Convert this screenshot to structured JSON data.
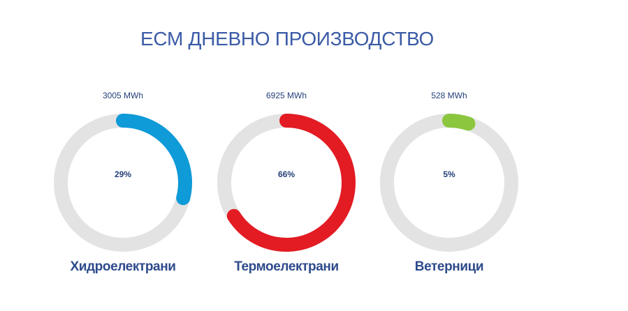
{
  "title": "ЕСМ ДНЕВНО ПРОИЗВОДСТВО",
  "colors": {
    "track": "#e3e3e3",
    "hydro": "#0f9ad8",
    "thermo": "#e31b23",
    "wind": "#8cc63f",
    "text": "#243f7a"
  },
  "chart_data": {
    "type": "pie",
    "title": "ЕСМ ДНЕВНО ПРОИЗВОДСТВО",
    "items": [
      {
        "name": "Хидроелектрани",
        "value_label": "3005 MWh",
        "value": 3005,
        "percent": 29,
        "percent_label": "29%",
        "color": "#0f9ad8"
      },
      {
        "name": "Термоелектрани",
        "value_label": "6925 MWh",
        "value": 6925,
        "percent": 66,
        "percent_label": "66%",
        "color": "#e31b23"
      },
      {
        "name": "Ветерници",
        "value_label": "528 MWh",
        "value": 528,
        "percent": 5,
        "percent_label": "5%",
        "color": "#8cc63f"
      }
    ]
  }
}
